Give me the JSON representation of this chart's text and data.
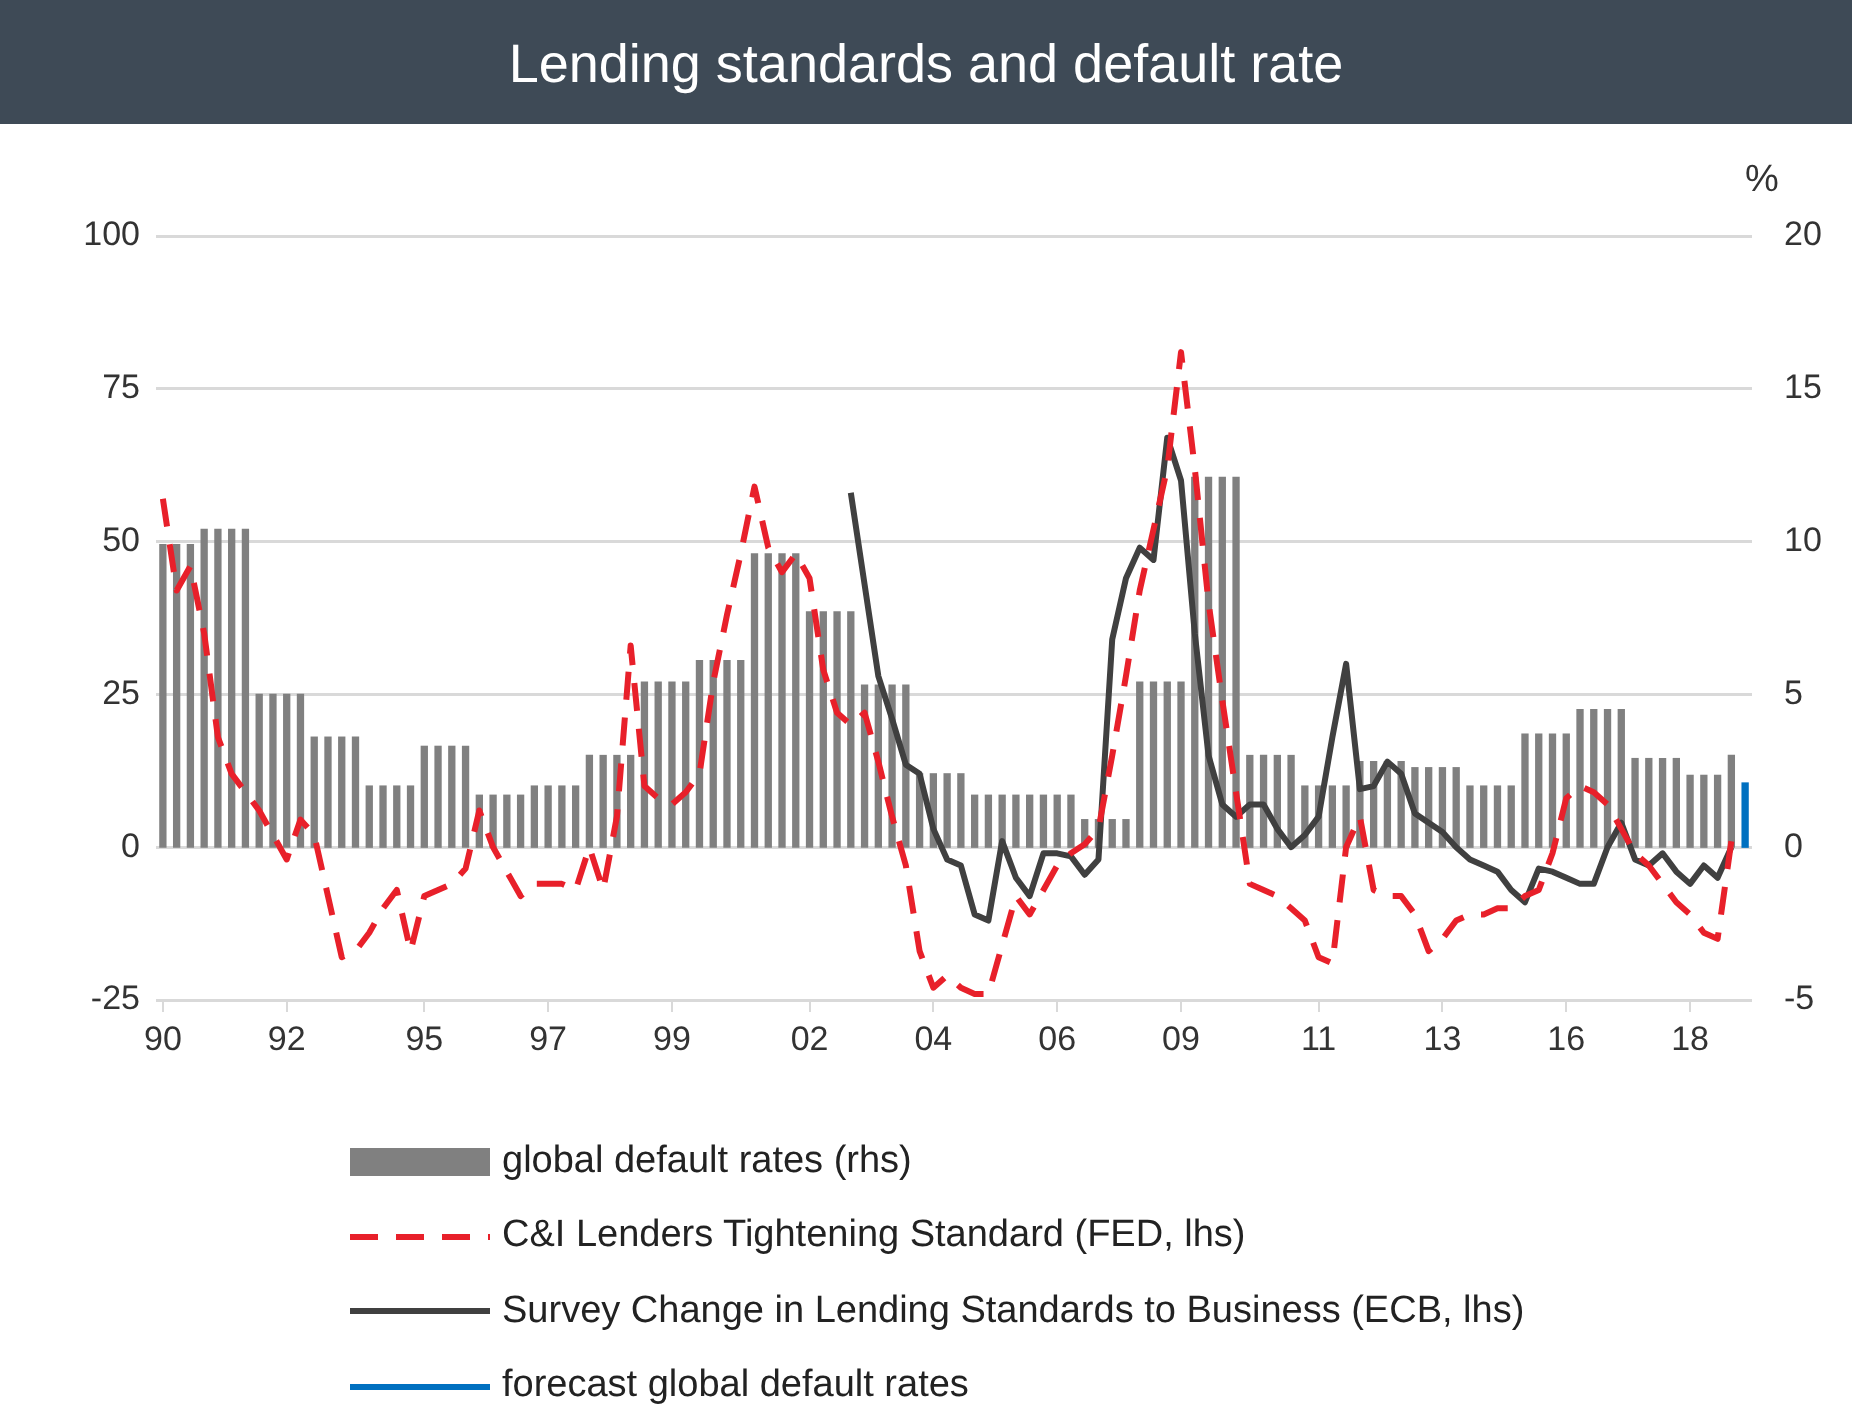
{
  "chart_data": {
    "type": "bar",
    "title": "Lending standards and default rate",
    "y2label": "%",
    "legend": "bottom",
    "grid": "y",
    "categories": [
      "90",
      null,
      null,
      null,
      null,
      null,
      null,
      null,
      null,
      "92",
      null,
      null,
      null,
      null,
      null,
      null,
      null,
      null,
      null,
      "95",
      null,
      null,
      null,
      null,
      null,
      null,
      null,
      null,
      "97",
      null,
      null,
      null,
      null,
      null,
      null,
      null,
      null,
      "99",
      null,
      null,
      null,
      null,
      null,
      null,
      null,
      null,
      null,
      "02",
      null,
      null,
      null,
      null,
      null,
      null,
      null,
      null,
      "04",
      null,
      null,
      null,
      null,
      null,
      null,
      null,
      null,
      "06",
      null,
      null,
      null,
      null,
      null,
      null,
      null,
      null,
      "09",
      null,
      null,
      null,
      null,
      null,
      null,
      null,
      null,
      null,
      "11",
      null,
      null,
      null,
      null,
      null,
      null,
      null,
      null,
      "13",
      null,
      null,
      null,
      null,
      null,
      null,
      null,
      null,
      "16",
      null,
      null,
      null,
      null,
      null,
      null,
      null,
      null,
      "18",
      null,
      null,
      null,
      null
    ],
    "ylim": [
      -25,
      100
    ],
    "yticks": [
      -25,
      0,
      25,
      50,
      75,
      100
    ],
    "y2lim": [
      -5,
      20
    ],
    "y2ticks": [
      -5,
      0,
      5,
      10,
      15,
      20
    ],
    "series": [
      {
        "name": "global default rates (rhs)",
        "axis": "y2",
        "color": "#808080",
        "values": [
          9.9,
          9.9,
          9.9,
          10.4,
          10.4,
          10.4,
          10.4,
          5.0,
          5.0,
          5.0,
          5.0,
          3.6,
          3.6,
          3.6,
          3.6,
          2.0,
          2.0,
          2.0,
          2.0,
          3.3,
          3.3,
          3.3,
          3.3,
          1.7,
          1.7,
          1.7,
          1.7,
          2.0,
          2.0,
          2.0,
          2.0,
          3.0,
          3.0,
          3.0,
          3.0,
          5.4,
          5.4,
          5.4,
          5.4,
          6.1,
          6.1,
          6.1,
          6.1,
          9.6,
          9.6,
          9.6,
          9.6,
          7.7,
          7.7,
          7.7,
          7.7,
          5.3,
          5.3,
          5.3,
          5.3,
          2.4,
          2.4,
          2.4,
          2.4,
          1.7,
          1.7,
          1.7,
          1.7,
          1.7,
          1.7,
          1.7,
          1.7,
          0.9,
          0.9,
          0.9,
          0.9,
          5.4,
          5.4,
          5.4,
          5.4,
          12.1,
          12.1,
          12.1,
          12.1,
          3.0,
          3.0,
          3.0,
          3.0,
          2.0,
          2.0,
          2.0,
          2.0,
          2.8,
          2.8,
          2.8,
          2.8,
          2.6,
          2.6,
          2.6,
          2.6,
          2.0,
          2.0,
          2.0,
          2.0,
          3.7,
          3.7,
          3.7,
          3.7,
          4.5,
          4.5,
          4.5,
          4.5,
          2.9,
          2.9,
          2.9,
          2.9,
          2.35,
          2.35,
          2.35,
          3.0,
          null
        ]
      },
      {
        "name": "C&I Lenders Tightening Standard (FED, lhs)",
        "type": "line",
        "axis": "y",
        "line_style": "dashed",
        "color": "#e8202a",
        "values": [
          57,
          42,
          46,
          35,
          18,
          12,
          9,
          6,
          2,
          -2,
          4.5,
          2,
          -8,
          -18,
          -17,
          -14,
          -10,
          -7,
          -17,
          -8,
          -7,
          -6,
          -3.5,
          6,
          0,
          -4,
          -8,
          -6,
          -6,
          -6,
          -7,
          0,
          -7,
          5,
          33,
          10,
          8,
          7,
          9,
          12,
          27,
          38,
          48,
          59,
          49,
          45,
          48,
          44,
          29,
          22,
          20,
          22,
          14,
          5,
          -3,
          -17,
          -23,
          -21,
          -23,
          -24,
          -24,
          -16,
          -8,
          -11,
          -7,
          -3,
          -1,
          0.5,
          3,
          15,
          28,
          42,
          52,
          62,
          81,
          62,
          40,
          24,
          9,
          -6,
          -7,
          -8,
          -10,
          -12,
          -18,
          -19,
          0,
          5,
          -7,
          -8,
          -8,
          -11,
          -17,
          -15,
          -12,
          -11,
          -11,
          -10,
          -10,
          -8,
          -7,
          -1,
          8,
          10,
          9,
          7,
          3,
          -1,
          -3,
          -6,
          -9,
          -11,
          -14,
          -15,
          1,
          null
        ]
      },
      {
        "name": "Survey Change in Lending Standards to Business (ECB, lhs)",
        "type": "line",
        "axis": "y",
        "line_style": "solid",
        "color": "#404040",
        "values": [
          null,
          null,
          null,
          null,
          null,
          null,
          null,
          null,
          null,
          null,
          null,
          null,
          null,
          null,
          null,
          null,
          null,
          null,
          null,
          null,
          null,
          null,
          null,
          null,
          null,
          null,
          null,
          null,
          null,
          null,
          null,
          null,
          null,
          null,
          null,
          null,
          null,
          null,
          null,
          null,
          null,
          null,
          null,
          null,
          null,
          null,
          null,
          null,
          null,
          null,
          58,
          43,
          28,
          21,
          13.5,
          12,
          3,
          -2,
          -3,
          -11,
          -12,
          1,
          -5,
          -8,
          -1,
          -1,
          -1.5,
          -4.5,
          -2,
          34,
          44,
          49,
          47,
          67,
          60,
          35,
          15,
          7,
          5,
          7,
          7,
          3,
          0,
          2,
          5,
          18,
          30,
          9.5,
          10,
          14,
          12,
          5.5,
          4,
          2.5,
          0,
          -2,
          -3,
          -4,
          -7,
          -9,
          -3.5,
          -4,
          -5,
          -6,
          -6,
          0,
          4,
          -2,
          -3,
          -1,
          -4,
          -6,
          -3,
          -5,
          0,
          null
        ]
      },
      {
        "name": "forecast global default rates",
        "axis": "y2",
        "color": "#0070c0",
        "values": [
          null,
          null,
          null,
          null,
          null,
          null,
          null,
          null,
          null,
          null,
          null,
          null,
          null,
          null,
          null,
          null,
          null,
          null,
          null,
          null,
          null,
          null,
          null,
          null,
          null,
          null,
          null,
          null,
          null,
          null,
          null,
          null,
          null,
          null,
          null,
          null,
          null,
          null,
          null,
          null,
          null,
          null,
          null,
          null,
          null,
          null,
          null,
          null,
          null,
          null,
          null,
          null,
          null,
          null,
          null,
          null,
          null,
          null,
          null,
          null,
          null,
          null,
          null,
          null,
          null,
          null,
          null,
          null,
          null,
          null,
          null,
          null,
          null,
          null,
          null,
          null,
          null,
          null,
          null,
          null,
          null,
          null,
          null,
          null,
          null,
          null,
          null,
          null,
          null,
          null,
          null,
          null,
          null,
          null,
          null,
          null,
          null,
          null,
          null,
          null,
          null,
          null,
          null,
          null,
          null,
          null,
          null,
          null,
          null,
          null,
          null,
          null,
          null,
          null,
          null,
          2.1
        ]
      }
    ]
  }
}
